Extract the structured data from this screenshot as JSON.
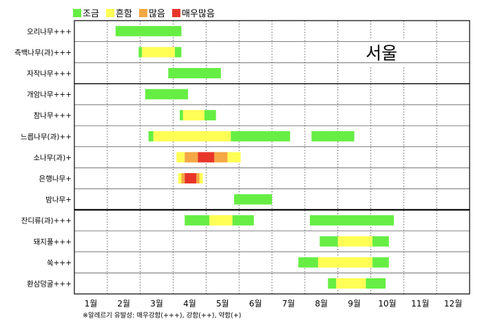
{
  "chart_data": {
    "type": "bar",
    "orientation": "horizontal-timeline",
    "legend": [
      {
        "key": "low",
        "label": "조금",
        "color": "#66ee44"
      },
      {
        "key": "mid",
        "label": "흔함",
        "color": "#ffff55"
      },
      {
        "key": "high",
        "label": "많음",
        "color": "#f4a742"
      },
      {
        "key": "vhigh",
        "label": "매우많음",
        "color": "#e8352a"
      }
    ],
    "months": [
      "1월",
      "2월",
      "3월",
      "4월",
      "5월",
      "6월",
      "7월",
      "8월",
      "9월",
      "10월",
      "11월",
      "12월"
    ],
    "city": "서울",
    "footnote": "※알레르기 유발성: 매우강함(+++), 강함(++), 약함(+)",
    "rows": [
      {
        "label": "오리나무+++",
        "segments": [
          {
            "start": 2.25,
            "end": 4.25,
            "level": "low"
          }
        ]
      },
      {
        "label": "측백나무(과)+++",
        "segments": [
          {
            "start": 2.95,
            "end": 3.05,
            "level": "low"
          },
          {
            "start": 3.05,
            "end": 4.05,
            "level": "mid"
          },
          {
            "start": 4.05,
            "end": 4.25,
            "level": "low"
          }
        ]
      },
      {
        "label": "자작나무+++",
        "segments": [
          {
            "start": 3.85,
            "end": 5.45,
            "level": "low"
          }
        ]
      },
      {
        "label": "개암나무+++",
        "segments": [
          {
            "start": 3.15,
            "end": 4.45,
            "level": "low"
          }
        ]
      },
      {
        "label": "참나무+++",
        "segments": [
          {
            "start": 4.2,
            "end": 4.3,
            "level": "low"
          },
          {
            "start": 4.3,
            "end": 4.95,
            "level": "mid"
          },
          {
            "start": 4.95,
            "end": 5.3,
            "level": "low"
          }
        ]
      },
      {
        "label": "느릅나무(과)++",
        "segments": [
          {
            "start": 3.25,
            "end": 3.4,
            "level": "low"
          },
          {
            "start": 3.4,
            "end": 5.75,
            "level": "mid"
          },
          {
            "start": 5.75,
            "end": 7.55,
            "level": "low"
          },
          {
            "start": 8.2,
            "end": 9.5,
            "level": "low"
          }
        ]
      },
      {
        "label": "소나무(과)+",
        "segments": [
          {
            "start": 4.1,
            "end": 4.35,
            "level": "mid"
          },
          {
            "start": 4.35,
            "end": 4.75,
            "level": "high"
          },
          {
            "start": 4.75,
            "end": 5.25,
            "level": "vhigh"
          },
          {
            "start": 5.25,
            "end": 5.65,
            "level": "high"
          },
          {
            "start": 5.65,
            "end": 6.05,
            "level": "mid"
          }
        ]
      },
      {
        "label": "은행나무+",
        "segments": [
          {
            "start": 4.15,
            "end": 4.25,
            "level": "mid"
          },
          {
            "start": 4.25,
            "end": 4.35,
            "level": "high"
          },
          {
            "start": 4.35,
            "end": 4.7,
            "level": "vhigh"
          },
          {
            "start": 4.7,
            "end": 4.8,
            "level": "high"
          },
          {
            "start": 4.8,
            "end": 4.9,
            "level": "mid"
          }
        ]
      },
      {
        "label": "밤나무+",
        "segments": [
          {
            "start": 5.85,
            "end": 7.0,
            "level": "low"
          }
        ]
      },
      {
        "label": "잔디류(과)+++",
        "segments": [
          {
            "start": 4.35,
            "end": 5.1,
            "level": "low"
          },
          {
            "start": 5.1,
            "end": 5.8,
            "level": "mid"
          },
          {
            "start": 5.8,
            "end": 6.45,
            "level": "low"
          },
          {
            "start": 8.15,
            "end": 10.7,
            "level": "low"
          }
        ]
      },
      {
        "label": "돼지풀+++",
        "segments": [
          {
            "start": 8.45,
            "end": 9.0,
            "level": "low"
          },
          {
            "start": 9.0,
            "end": 10.05,
            "level": "mid"
          },
          {
            "start": 10.05,
            "end": 10.55,
            "level": "low"
          }
        ]
      },
      {
        "label": "쑥+++",
        "segments": [
          {
            "start": 7.8,
            "end": 8.4,
            "level": "low"
          },
          {
            "start": 8.4,
            "end": 10.05,
            "level": "mid"
          },
          {
            "start": 10.05,
            "end": 10.55,
            "level": "low"
          }
        ]
      },
      {
        "label": "환삼덩굴+++",
        "segments": [
          {
            "start": 8.7,
            "end": 8.95,
            "level": "low"
          },
          {
            "start": 8.95,
            "end": 9.85,
            "level": "mid"
          },
          {
            "start": 9.85,
            "end": 10.45,
            "level": "low"
          }
        ]
      }
    ]
  }
}
